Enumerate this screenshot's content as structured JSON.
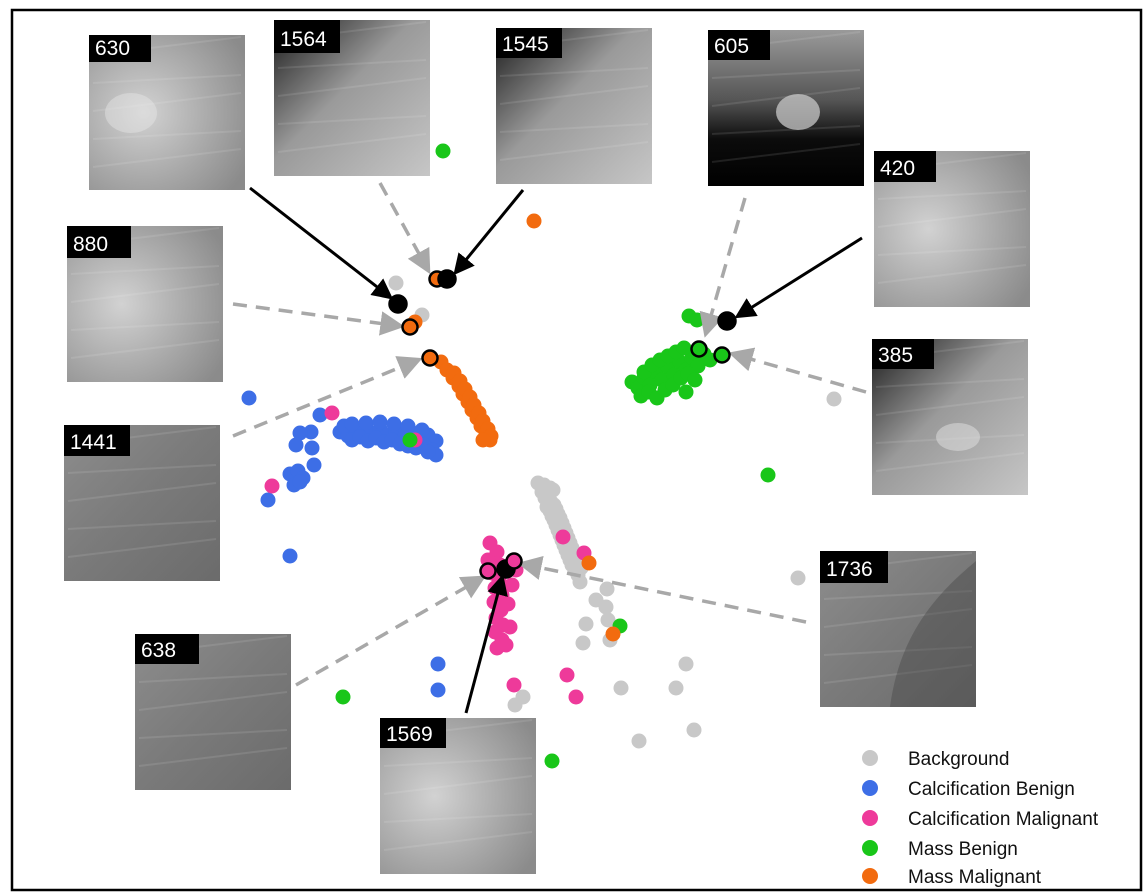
{
  "chart_data": {
    "type": "scatter",
    "title": "",
    "xlabel": "",
    "ylabel": "",
    "axes_visible": false,
    "grid": false,
    "legend_position": "bottom-right",
    "xlim": [
      0,
      1148
    ],
    "ylim": [
      0,
      894
    ],
    "y_direction": "down",
    "series": [
      {
        "name": "Background",
        "color": "#c8c8c8",
        "points": [
          [
            538,
            483
          ],
          [
            544,
            485
          ],
          [
            550,
            488
          ],
          [
            542,
            492
          ],
          [
            548,
            495
          ],
          [
            553,
            490
          ],
          [
            545,
            498
          ],
          [
            551,
            502
          ],
          [
            547,
            507
          ],
          [
            554,
            505
          ],
          [
            550,
            511
          ],
          [
            556,
            509
          ],
          [
            552,
            516
          ],
          [
            558,
            514
          ],
          [
            554,
            520
          ],
          [
            560,
            518
          ],
          [
            556,
            525
          ],
          [
            562,
            523
          ],
          [
            558,
            530
          ],
          [
            564,
            528
          ],
          [
            560,
            535
          ],
          [
            566,
            533
          ],
          [
            562,
            540
          ],
          [
            568,
            538
          ],
          [
            564,
            545
          ],
          [
            570,
            543
          ],
          [
            566,
            550
          ],
          [
            572,
            548
          ],
          [
            568,
            555
          ],
          [
            574,
            553
          ],
          [
            570,
            560
          ],
          [
            576,
            558
          ],
          [
            572,
            565
          ],
          [
            578,
            563
          ],
          [
            575,
            570
          ],
          [
            581,
            568
          ],
          [
            578,
            575
          ],
          [
            580,
            582
          ],
          [
            607,
            589
          ],
          [
            596,
            600
          ],
          [
            606,
            607
          ],
          [
            586,
            624
          ],
          [
            608,
            620
          ],
          [
            583,
            643
          ],
          [
            610,
            640
          ],
          [
            686,
            664
          ],
          [
            621,
            688
          ],
          [
            676,
            688
          ],
          [
            523,
            697
          ],
          [
            515,
            705
          ],
          [
            639,
            741
          ],
          [
            694,
            730
          ],
          [
            798,
            578
          ],
          [
            834,
            399
          ],
          [
            396,
            283
          ],
          [
            422,
            315
          ]
        ]
      },
      {
        "name": "Calcification Benign",
        "color": "#3d6ee6",
        "points": [
          [
            249,
            398
          ],
          [
            320,
            415
          ],
          [
            340,
            432
          ],
          [
            348,
            436
          ],
          [
            356,
            430
          ],
          [
            364,
            428
          ],
          [
            372,
            433
          ],
          [
            380,
            429
          ],
          [
            388,
            435
          ],
          [
            396,
            431
          ],
          [
            404,
            437
          ],
          [
            412,
            433
          ],
          [
            420,
            439
          ],
          [
            428,
            435
          ],
          [
            436,
            441
          ],
          [
            344,
            426
          ],
          [
            352,
            440
          ],
          [
            360,
            437
          ],
          [
            368,
            441
          ],
          [
            376,
            438
          ],
          [
            384,
            442
          ],
          [
            392,
            440
          ],
          [
            400,
            444
          ],
          [
            408,
            446
          ],
          [
            416,
            448
          ],
          [
            424,
            445
          ],
          [
            432,
            450
          ],
          [
            436,
            455
          ],
          [
            428,
            452
          ],
          [
            352,
            424
          ],
          [
            366,
            423
          ],
          [
            380,
            422
          ],
          [
            394,
            424
          ],
          [
            408,
            426
          ],
          [
            422,
            430
          ],
          [
            311,
            432
          ],
          [
            300,
            433
          ],
          [
            296,
            445
          ],
          [
            312,
            448
          ],
          [
            290,
            474
          ],
          [
            298,
            471
          ],
          [
            303,
            478
          ],
          [
            294,
            485
          ],
          [
            300,
            482
          ],
          [
            314,
            465
          ],
          [
            268,
            500
          ],
          [
            290,
            556
          ],
          [
            438,
            664
          ],
          [
            438,
            690
          ]
        ]
      },
      {
        "name": "Calcification Malignant",
        "color": "#ee3a9a",
        "points": [
          [
            332,
            413
          ],
          [
            415,
            440
          ],
          [
            272,
            486
          ],
          [
            490,
            543
          ],
          [
            497,
            552
          ],
          [
            493,
            560
          ],
          [
            500,
            565
          ],
          [
            492,
            573
          ],
          [
            499,
            580
          ],
          [
            495,
            588
          ],
          [
            502,
            595
          ],
          [
            494,
            602
          ],
          [
            501,
            610
          ],
          [
            496,
            618
          ],
          [
            503,
            625
          ],
          [
            495,
            632
          ],
          [
            502,
            640
          ],
          [
            497,
            648
          ],
          [
            506,
            645
          ],
          [
            510,
            627
          ],
          [
            508,
            604
          ],
          [
            512,
            585
          ],
          [
            516,
            570
          ],
          [
            488,
            560
          ],
          [
            563,
            537
          ],
          [
            584,
            553
          ],
          [
            567,
            675
          ],
          [
            576,
            697
          ],
          [
            514,
            685
          ]
        ]
      },
      {
        "name": "Mass Benign",
        "color": "#19c619",
        "points": [
          [
            443,
            151
          ],
          [
            689,
            316
          ],
          [
            697,
            320
          ],
          [
            632,
            382
          ],
          [
            638,
            388
          ],
          [
            644,
            378
          ],
          [
            650,
            385
          ],
          [
            656,
            372
          ],
          [
            662,
            380
          ],
          [
            668,
            367
          ],
          [
            674,
            375
          ],
          [
            680,
            362
          ],
          [
            686,
            370
          ],
          [
            692,
            358
          ],
          [
            698,
            366
          ],
          [
            704,
            354
          ],
          [
            641,
            396
          ],
          [
            649,
            392
          ],
          [
            657,
            398
          ],
          [
            665,
            390
          ],
          [
            673,
            385
          ],
          [
            681,
            378
          ],
          [
            688,
            374
          ],
          [
            644,
            372
          ],
          [
            652,
            365
          ],
          [
            660,
            360
          ],
          [
            668,
            356
          ],
          [
            676,
            352
          ],
          [
            684,
            348
          ],
          [
            686,
            392
          ],
          [
            695,
            380
          ],
          [
            710,
            360
          ],
          [
            410,
            440
          ],
          [
            768,
            475
          ],
          [
            620,
            626
          ],
          [
            343,
            697
          ],
          [
            552,
            761
          ]
        ]
      },
      {
        "name": "Mass Malignant",
        "color": "#f26b0f",
        "points": [
          [
            534,
            221
          ],
          [
            415,
            322
          ],
          [
            441,
            362
          ],
          [
            447,
            370
          ],
          [
            453,
            378
          ],
          [
            459,
            386
          ],
          [
            463,
            394
          ],
          [
            468,
            402
          ],
          [
            472,
            410
          ],
          [
            477,
            418
          ],
          [
            481,
            426
          ],
          [
            486,
            434
          ],
          [
            490,
            440
          ],
          [
            454,
            373
          ],
          [
            460,
            381
          ],
          [
            465,
            389
          ],
          [
            470,
            397
          ],
          [
            474,
            405
          ],
          [
            479,
            413
          ],
          [
            483,
            421
          ],
          [
            488,
            429
          ],
          [
            491,
            436
          ],
          [
            483,
            440
          ],
          [
            589,
            563
          ],
          [
            613,
            634
          ]
        ]
      }
    ],
    "highlighted_samples": [
      {
        "label": "630",
        "class": "Mass Malignant",
        "point": [
          398,
          304
        ],
        "fill": "#000000",
        "arrow": "solid"
      },
      {
        "label": "1564",
        "class": "Mass Malignant",
        "point": [
          437,
          279
        ],
        "fill": "#f26b0f",
        "arrow": "dashed"
      },
      {
        "label": "1545",
        "class": "Mass Malignant",
        "point": [
          447,
          279
        ],
        "fill": "#000000",
        "arrow": "solid"
      },
      {
        "label": "880",
        "class": "Mass Malignant",
        "point": [
          410,
          327
        ],
        "fill": "#f26b0f",
        "arrow": "dashed"
      },
      {
        "label": "1441",
        "class": "Mass Malignant",
        "point": [
          430,
          358
        ],
        "fill": "#f26b0f",
        "arrow": "dashed"
      },
      {
        "label": "605",
        "class": "Mass Benign",
        "point": [
          699,
          349
        ],
        "fill": "#19c619",
        "arrow": "dashed"
      },
      {
        "label": "420",
        "class": "Mass Benign",
        "point": [
          727,
          321
        ],
        "fill": "#000000",
        "arrow": "solid"
      },
      {
        "label": "385",
        "class": "Mass Benign",
        "point": [
          722,
          355
        ],
        "fill": "#19c619",
        "arrow": "dashed"
      },
      {
        "label": "638",
        "class": "Calcification Malignant",
        "point": [
          488,
          571
        ],
        "fill": "#ee3a9a",
        "arrow": "dashed"
      },
      {
        "label": "1569",
        "class": "Calcification Malignant",
        "point": [
          506,
          569
        ],
        "fill": "#000000",
        "arrow": "solid"
      },
      {
        "label": "1736",
        "class": "Calcification Malignant",
        "point": [
          514,
          561
        ],
        "fill": "#ee3a9a",
        "arrow": "dashed"
      }
    ],
    "patch_thumbnails": [
      {
        "label": "630",
        "tone": "light",
        "attached_to": "630"
      },
      {
        "label": "1564",
        "tone": "dark",
        "attached_to": "1564"
      },
      {
        "label": "1545",
        "tone": "dark",
        "attached_to": "1545"
      },
      {
        "label": "605",
        "tone": "black",
        "attached_to": "605"
      },
      {
        "label": "420",
        "tone": "light",
        "attached_to": "420"
      },
      {
        "label": "880",
        "tone": "light",
        "attached_to": "880"
      },
      {
        "label": "385",
        "tone": "dark",
        "attached_to": "385"
      },
      {
        "label": "1441",
        "tone": "mid",
        "attached_to": "1441"
      },
      {
        "label": "1736",
        "tone": "mid",
        "attached_to": "1736"
      },
      {
        "label": "638",
        "tone": "mid",
        "attached_to": "638"
      },
      {
        "label": "1569",
        "tone": "light",
        "attached_to": "1569"
      }
    ],
    "legend": [
      {
        "label": "Background",
        "color": "#c8c8c8"
      },
      {
        "label": "Calcification Benign",
        "color": "#3d6ee6"
      },
      {
        "label": "Calcification Malignant",
        "color": "#ee3a9a"
      },
      {
        "label": "Mass Benign",
        "color": "#19c619"
      },
      {
        "label": "Mass Malignant",
        "color": "#f26b0f"
      }
    ]
  }
}
